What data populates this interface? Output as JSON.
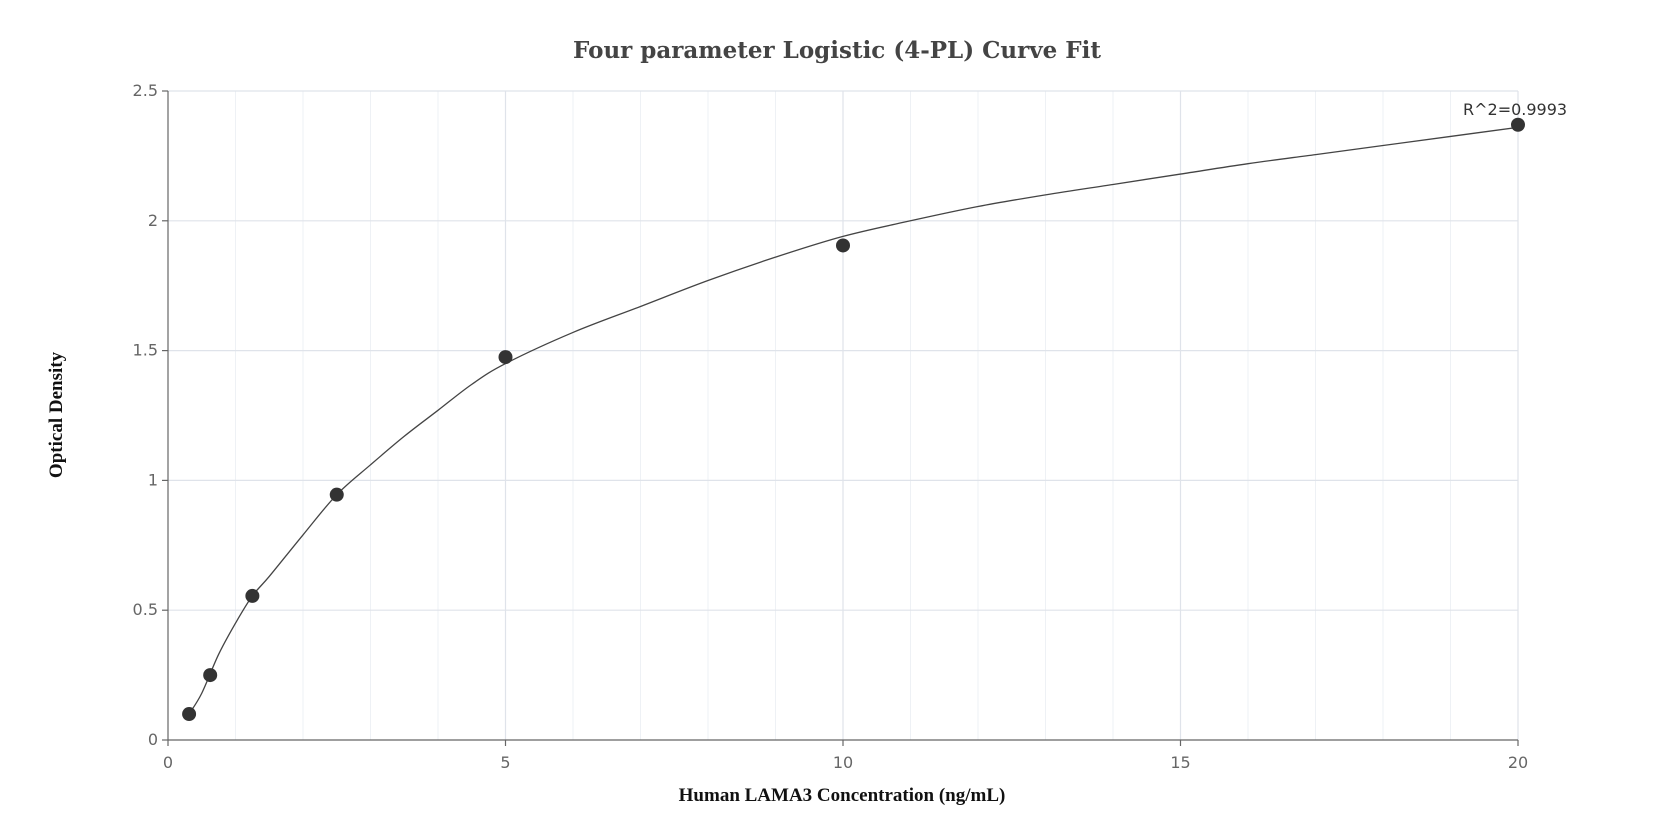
{
  "chart_data": {
    "type": "scatter",
    "title": "Four parameter Logistic (4-PL) Curve Fit",
    "xlabel": "Human LAMA3 Concentration (ng/mL)",
    "ylabel": "Optical Density",
    "xlim": [
      0,
      20
    ],
    "ylim": [
      0,
      2.5
    ],
    "x_ticks": [
      0,
      5,
      10,
      15,
      20
    ],
    "y_ticks": [
      0,
      0.5,
      1,
      1.5,
      2,
      2.5
    ],
    "x_tick_labels": [
      "0",
      "5",
      "10",
      "15",
      "20"
    ],
    "y_tick_labels": [
      "0",
      "0.5",
      "1",
      "1.5",
      "2",
      "2.5"
    ],
    "grid": true,
    "series": [
      {
        "type": "scatter",
        "x": [
          0.3125,
          0.625,
          1.25,
          2.5,
          5,
          10,
          20
        ],
        "y": [
          0.1,
          0.25,
          0.555,
          0.945,
          1.475,
          1.905,
          2.37
        ]
      }
    ],
    "fit_curve": {
      "model": "4PL",
      "x": [
        0.3125,
        0.5,
        0.75,
        1,
        1.25,
        1.5,
        2,
        2.5,
        3,
        3.5,
        4,
        4.5,
        5,
        6,
        7,
        8,
        9,
        10,
        11,
        12,
        13,
        14,
        15,
        16,
        17,
        18,
        19,
        20
      ],
      "y": [
        0.1,
        0.18,
        0.33,
        0.45,
        0.555,
        0.63,
        0.79,
        0.945,
        1.06,
        1.17,
        1.27,
        1.37,
        1.45,
        1.57,
        1.67,
        1.77,
        1.86,
        1.94,
        2.0,
        2.055,
        2.1,
        2.14,
        2.18,
        2.22,
        2.255,
        2.29,
        2.325,
        2.36
      ]
    },
    "annotation": "R^2=0.9993"
  }
}
